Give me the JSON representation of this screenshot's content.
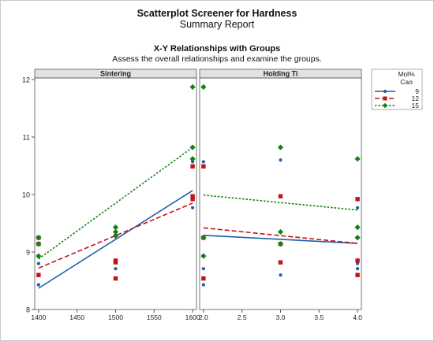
{
  "header": {
    "title": "Scatterplot Screener for Hardness",
    "subtitle": "Summary Report",
    "section_title": "X-Y Relationships with Groups",
    "section_subtitle": "Assess the overall relationships and examine the groups."
  },
  "legend": {
    "title": "Mol%",
    "variable": "Cao",
    "position": "top-right"
  },
  "colors": {
    "g9": "#1f5fa8",
    "g12": "#c0141b",
    "g15": "#128312",
    "panel_header": "#e2e2e2",
    "axis": "#555555"
  },
  "chart_data": {
    "type": "scatter",
    "ylim": [
      8,
      12
    ],
    "yticks": [
      "8",
      "9",
      "10",
      "11",
      "12"
    ],
    "groups": [
      {
        "name": "9",
        "marker": "circle",
        "line": "solid"
      },
      {
        "name": "12",
        "marker": "square",
        "line": "dash"
      },
      {
        "name": "15",
        "marker": "diamond",
        "line": "dot"
      }
    ],
    "panels": [
      {
        "title": "Sintering",
        "xlim": [
          1395,
          1605
        ],
        "xticks": [
          "1400",
          "1450",
          "1500",
          "1550",
          "1600"
        ],
        "points": {
          "9": [
            [
              1400,
              8.43
            ],
            [
              1400,
              8.8
            ],
            [
              1500,
              8.71
            ],
            [
              1500,
              9.3
            ],
            [
              1600,
              9.77
            ],
            [
              1600,
              10.57
            ],
            [
              1600,
              10.6
            ]
          ],
          "12": [
            [
              1400,
              8.6
            ],
            [
              1400,
              9.14
            ],
            [
              1400,
              9.25
            ],
            [
              1500,
              8.54
            ],
            [
              1500,
              8.82
            ],
            [
              1500,
              8.85
            ],
            [
              1600,
              9.92
            ],
            [
              1600,
              9.97
            ],
            [
              1600,
              10.49
            ]
          ],
          "15": [
            [
              1400,
              8.93
            ],
            [
              1400,
              9.14
            ],
            [
              1400,
              9.25
            ],
            [
              1500,
              9.28
            ],
            [
              1500,
              9.35
            ],
            [
              1500,
              9.43
            ],
            [
              1600,
              10.62
            ],
            [
              1600,
              10.82
            ],
            [
              1600,
              11.87
            ]
          ]
        },
        "fits": {
          "9": [
            [
              1400,
              8.37
            ],
            [
              1600,
              10.07
            ]
          ],
          "12": [
            [
              1400,
              8.72
            ],
            [
              1600,
              9.85
            ]
          ],
          "15": [
            [
              1400,
              8.88
            ],
            [
              1600,
              10.82
            ]
          ]
        }
      },
      {
        "title": "Holding Ti",
        "xlim": [
          1.95,
          4.05
        ],
        "xticks": [
          "2.0",
          "2.5",
          "3.0",
          "3.5",
          "4.0"
        ],
        "points": {
          "9": [
            [
              2,
              8.43
            ],
            [
              2,
              8.71
            ],
            [
              2,
              10.57
            ],
            [
              3,
              8.6
            ],
            [
              3,
              9.15
            ],
            [
              3,
              10.6
            ],
            [
              4,
              8.71
            ],
            [
              4,
              8.8
            ],
            [
              4,
              9.77
            ]
          ],
          "12": [
            [
              2,
              8.54
            ],
            [
              2,
              9.25
            ],
            [
              2,
              10.49
            ],
            [
              3,
              8.82
            ],
            [
              3,
              9.14
            ],
            [
              3,
              9.97
            ],
            [
              4,
              8.6
            ],
            [
              4,
              8.85
            ],
            [
              4,
              9.92
            ]
          ],
          "15": [
            [
              2,
              8.93
            ],
            [
              2,
              9.25
            ],
            [
              2,
              11.87
            ],
            [
              3,
              9.14
            ],
            [
              3,
              9.35
            ],
            [
              3,
              10.82
            ],
            [
              4,
              9.25
            ],
            [
              4,
              9.43
            ],
            [
              4,
              10.62
            ]
          ]
        },
        "fits": {
          "9": [
            [
              2,
              9.29
            ],
            [
              4,
              9.15
            ]
          ],
          "12": [
            [
              2,
              9.42
            ],
            [
              4,
              9.15
            ]
          ],
          "15": [
            [
              2,
              9.99
            ],
            [
              4,
              9.73
            ]
          ]
        }
      }
    ]
  }
}
